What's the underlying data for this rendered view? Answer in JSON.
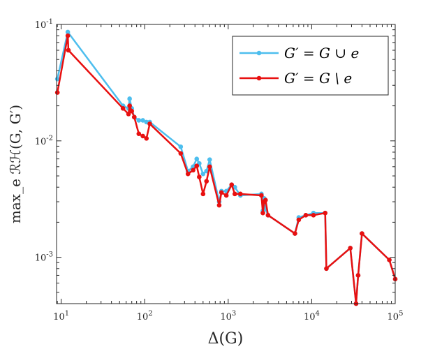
{
  "chart_data": {
    "type": "line",
    "xlabel": "Δ(G)",
    "ylabel": "max_e  ℛℋ(G, G′)",
    "xscale": "log",
    "yscale": "log",
    "xlim": [
      8.8,
      100000
    ],
    "ylim": [
      0.0004,
      0.1
    ],
    "x_ticks": [
      10,
      100,
      1000,
      10000,
      100000
    ],
    "x_tick_labels": [
      {
        "base": "10",
        "exp": "1"
      },
      {
        "base": "10",
        "exp": "2"
      },
      {
        "base": "10",
        "exp": "3"
      },
      {
        "base": "10",
        "exp": "4"
      },
      {
        "base": "10",
        "exp": "5"
      }
    ],
    "y_ticks": [
      0.001,
      0.01,
      0.1
    ],
    "y_tick_labels": [
      {
        "base": "10",
        "exp": "-3"
      },
      {
        "base": "10",
        "exp": "-2"
      },
      {
        "base": "10",
        "exp": "-1"
      }
    ],
    "grid": false,
    "legend_position": "top-right",
    "series": [
      {
        "name": "G′ = G ∪ e",
        "color": "#4dbeee",
        "x": [
          9,
          12,
          55,
          64,
          66,
          70,
          75,
          85,
          95,
          105,
          115,
          270,
          330,
          380,
          420,
          450,
          500,
          550,
          600,
          780,
          830,
          950,
          1100,
          1200,
          1400,
          2500,
          2600,
          2700,
          2800,
          3000,
          6300,
          7000,
          8500,
          10500,
          14500,
          15000,
          29000,
          34000,
          36000,
          40000,
          85000,
          100000
        ],
        "y": [
          0.034,
          0.086,
          0.02,
          0.019,
          0.023,
          0.019,
          0.016,
          0.015,
          0.015,
          0.0145,
          0.0145,
          0.0089,
          0.0055,
          0.006,
          0.007,
          0.0064,
          0.0052,
          0.0055,
          0.0069,
          0.003,
          0.0037,
          0.0037,
          0.0042,
          0.004,
          0.0034,
          0.0035,
          0.0025,
          0.0032,
          0.0026,
          0.0023,
          0.0016,
          0.0022,
          0.0023,
          0.0024,
          0.0024,
          0.0008,
          0.0012,
          0.0004,
          0.0007,
          0.0016,
          0.00095,
          0.00065
        ]
      },
      {
        "name": "G′ = G \\ e",
        "color": "#e81010",
        "x": [
          9,
          12,
          12.2,
          55,
          64,
          66,
          70,
          75,
          85,
          95,
          105,
          115,
          270,
          330,
          380,
          420,
          450,
          500,
          550,
          600,
          780,
          830,
          950,
          1100,
          1200,
          1400,
          2500,
          2600,
          2700,
          2800,
          3000,
          6300,
          7000,
          8500,
          10500,
          14500,
          15000,
          29000,
          34000,
          36000,
          40000,
          85000,
          100000
        ],
        "y": [
          0.026,
          0.08,
          0.06,
          0.019,
          0.017,
          0.02,
          0.018,
          0.016,
          0.0115,
          0.011,
          0.0105,
          0.014,
          0.0078,
          0.0052,
          0.0056,
          0.0061,
          0.0049,
          0.0035,
          0.0045,
          0.006,
          0.0028,
          0.0036,
          0.0034,
          0.0042,
          0.0035,
          0.0035,
          0.0034,
          0.0024,
          0.003,
          0.0031,
          0.0023,
          0.0016,
          0.0021,
          0.0023,
          0.0023,
          0.0024,
          0.0008,
          0.0012,
          0.0004,
          0.0007,
          0.0016,
          0.00095,
          0.00065
        ]
      }
    ]
  }
}
